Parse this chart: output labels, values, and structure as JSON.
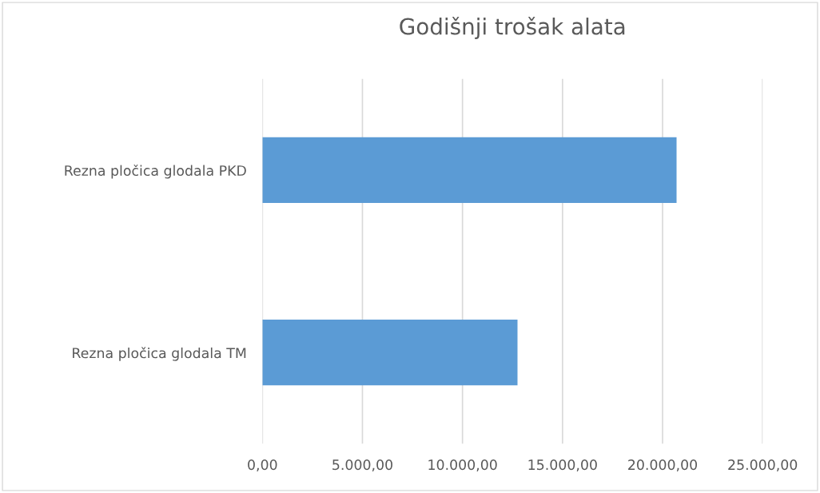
{
  "chart_data": {
    "type": "bar",
    "orientation": "horizontal",
    "title": "Godišnji trošak alata",
    "categories": [
      "Rezna pločica glodala PKD",
      "Rezna pločica glodala TM"
    ],
    "values": [
      20700,
      12750
    ],
    "color": "#5b9bd5",
    "xlim": [
      0,
      25000
    ],
    "xticks": [
      {
        "value": 0,
        "label": "0,00"
      },
      {
        "value": 5000,
        "label": "5.000,00"
      },
      {
        "value": 10000,
        "label": "10.000,00"
      },
      {
        "value": 15000,
        "label": "15.000,00"
      },
      {
        "value": 20000,
        "label": "20.000,00"
      },
      {
        "value": 25000,
        "label": "25.000,00"
      }
    ],
    "grid": "x",
    "legend": false
  }
}
